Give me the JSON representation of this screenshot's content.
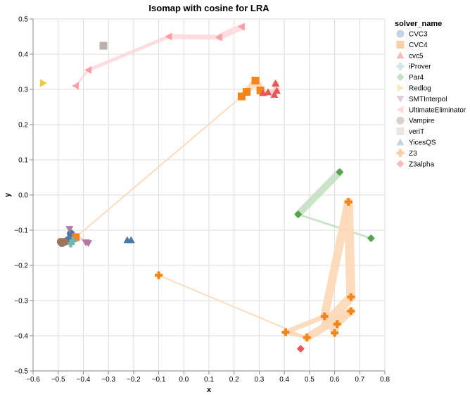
{
  "chart_data": {
    "type": "scatter",
    "title": "Isomap with cosine for LRA",
    "xlabel": "x",
    "ylabel": "y",
    "xlim": [
      -0.6,
      0.8
    ],
    "ylim": [
      -0.5,
      0.5
    ],
    "xticks": [
      "−0.6",
      "−0.5",
      "−0.4",
      "−0.3",
      "−0.2",
      "−0.1",
      "0.0",
      "0.1",
      "0.2",
      "0.3",
      "0.4",
      "0.5",
      "0.6",
      "0.7",
      "0.8"
    ],
    "xtick_values": [
      -0.6,
      -0.5,
      -0.4,
      -0.3,
      -0.2,
      -0.1,
      0.0,
      0.1,
      0.2,
      0.3,
      0.4,
      0.5,
      0.6,
      0.7,
      0.8
    ],
    "yticks": [
      "0.5",
      "0.4",
      "0.3",
      "0.2",
      "0.1",
      "0.0",
      "−0.1",
      "−0.2",
      "−0.3",
      "−0.4",
      "−0.5"
    ],
    "ytick_values": [
      0.5,
      0.4,
      0.3,
      0.2,
      0.1,
      0.0,
      -0.1,
      -0.2,
      -0.3,
      -0.4,
      -0.5
    ],
    "grid": true,
    "legend": {
      "title": "solver_name",
      "position": "right"
    },
    "series": [
      {
        "name": "CVC3",
        "shape": "circle",
        "color": "#4c78a8",
        "legend_color": "#c5d3e3",
        "points": [
          [
            -0.45,
            -0.11
          ],
          [
            -0.46,
            -0.128
          ]
        ]
      },
      {
        "name": "CVC4",
        "shape": "square",
        "color": "#f58518",
        "legend_color": "#fbcfa3",
        "points": [
          [
            0.23,
            0.28
          ],
          [
            0.25,
            0.293
          ],
          [
            0.285,
            0.325
          ],
          [
            0.305,
            0.297
          ],
          [
            -0.43,
            -0.12
          ]
        ]
      },
      {
        "name": "cvc5",
        "shape": "triangle-up",
        "color": "#e45756",
        "legend_color": "#f4bcbb",
        "points": [
          [
            0.315,
            0.29
          ],
          [
            0.335,
            0.292
          ],
          [
            0.36,
            0.285
          ],
          [
            0.365,
            0.317
          ],
          [
            0.37,
            0.296
          ]
        ]
      },
      {
        "name": "iProver",
        "shape": "cross",
        "color": "#72b7b2",
        "legend_color": "#cfe7e5",
        "points": [
          [
            -0.45,
            -0.138
          ],
          [
            -0.44,
            -0.13
          ]
        ]
      },
      {
        "name": "Par4",
        "shape": "diamond",
        "color": "#54a24b",
        "legend_color": "#c6e0c3",
        "points": [
          [
            0.62,
            0.065
          ],
          [
            0.455,
            -0.055
          ],
          [
            0.745,
            -0.123
          ]
        ]
      },
      {
        "name": "Redlog",
        "shape": "triangle-right",
        "color": "#eeca3b",
        "legend_color": "#f9eabb",
        "points": [
          [
            -0.56,
            0.318
          ]
        ]
      },
      {
        "name": "SMTInterpol",
        "shape": "triangle-down",
        "color": "#b279a2",
        "legend_color": "#e2cddc",
        "points": [
          [
            -0.455,
            -0.097
          ],
          [
            -0.39,
            -0.135
          ],
          [
            -0.38,
            -0.137
          ]
        ]
      },
      {
        "name": "UltimateEliminator",
        "shape": "triangle-left",
        "color": "#ff9da6",
        "legend_color": "#ffd9dd",
        "points": [
          [
            -0.43,
            0.31
          ],
          [
            -0.38,
            0.355
          ],
          [
            -0.06,
            0.45
          ],
          [
            0.14,
            0.448
          ],
          [
            0.23,
            0.478
          ]
        ]
      },
      {
        "name": "Vampire",
        "shape": "circle",
        "color": "#9d755d",
        "legend_color": "#ddd0c8",
        "points": [
          [
            -0.49,
            -0.133
          ],
          [
            -0.475,
            -0.133
          ],
          [
            -0.485,
            -0.137
          ]
        ]
      },
      {
        "name": "veriT",
        "shape": "square",
        "color": "#bab0ac",
        "legend_color": "#e9e6e4",
        "points": [
          [
            -0.32,
            0.424
          ]
        ]
      },
      {
        "name": "YicesQS",
        "shape": "triangle-up",
        "color": "#4c78a8",
        "legend_color": "#c5d3e3",
        "points": [
          [
            -0.225,
            -0.128
          ],
          [
            -0.21,
            -0.128
          ]
        ]
      },
      {
        "name": "Z3",
        "shape": "cross",
        "color": "#f58518",
        "legend_color": "#fbcfa3",
        "points": [
          [
            -0.1,
            -0.228
          ],
          [
            0.405,
            -0.39
          ],
          [
            0.49,
            -0.405
          ],
          [
            0.56,
            -0.345
          ],
          [
            0.6,
            -0.392
          ],
          [
            0.61,
            -0.367
          ],
          [
            0.665,
            -0.33
          ],
          [
            0.665,
            -0.29
          ],
          [
            0.655,
            -0.02
          ]
        ]
      },
      {
        "name": "Z3alpha",
        "shape": "diamond",
        "color": "#e45756",
        "legend_color": "#f4bcbb",
        "points": [
          [
            0.465,
            -0.437
          ]
        ]
      }
    ],
    "trails": [
      {
        "name": "UltimateEliminator",
        "color": "#ffd9dd",
        "segments": [
          {
            "from": [
              -0.43,
              0.31
            ],
            "to": [
              -0.38,
              0.355
            ],
            "width": 3
          },
          {
            "from": [
              -0.38,
              0.355
            ],
            "to": [
              -0.06,
              0.45
            ],
            "width": 5
          },
          {
            "from": [
              -0.06,
              0.45
            ],
            "to": [
              0.14,
              0.448
            ],
            "width": 7
          },
          {
            "from": [
              0.14,
              0.448
            ],
            "to": [
              0.23,
              0.478
            ],
            "width": 9
          }
        ]
      },
      {
        "name": "CVC4",
        "color": "#fdd9b8",
        "segments": [
          {
            "from": [
              -0.43,
              -0.12
            ],
            "to": [
              0.23,
              0.28
            ],
            "width": 2
          },
          {
            "from": [
              0.23,
              0.28
            ],
            "to": [
              0.25,
              0.293
            ],
            "width": 7
          },
          {
            "from": [
              0.25,
              0.293
            ],
            "to": [
              0.285,
              0.325
            ],
            "width": 9
          },
          {
            "from": [
              0.285,
              0.325
            ],
            "to": [
              0.305,
              0.297
            ],
            "width": 11
          }
        ]
      },
      {
        "name": "cvc5",
        "color": "#f8cdcc",
        "segments": [
          {
            "from": [
              0.315,
              0.29
            ],
            "to": [
              0.335,
              0.292
            ],
            "width": 4
          },
          {
            "from": [
              0.335,
              0.292
            ],
            "to": [
              0.37,
              0.296
            ],
            "width": 7
          },
          {
            "from": [
              0.37,
              0.296
            ],
            "to": [
              0.365,
              0.317
            ],
            "width": 9
          }
        ]
      },
      {
        "name": "Par4",
        "color": "#c6e0c3",
        "segments": [
          {
            "from": [
              0.745,
              -0.123
            ],
            "to": [
              0.455,
              -0.055
            ],
            "width": 3
          },
          {
            "from": [
              0.455,
              -0.055
            ],
            "to": [
              0.62,
              0.065
            ],
            "width": 10
          }
        ]
      },
      {
        "name": "Z3",
        "color": "#fdd9b8",
        "segments": [
          {
            "from": [
              -0.1,
              -0.228
            ],
            "to": [
              0.49,
              -0.405
            ],
            "width": 2
          },
          {
            "from": [
              0.49,
              -0.405
            ],
            "to": [
              0.405,
              -0.39
            ],
            "width": 5
          },
          {
            "from": [
              0.405,
              -0.39
            ],
            "to": [
              0.56,
              -0.345
            ],
            "width": 7
          },
          {
            "from": [
              0.56,
              -0.345
            ],
            "to": [
              0.6,
              -0.392
            ],
            "width": 8
          },
          {
            "from": [
              0.6,
              -0.392
            ],
            "to": [
              0.61,
              -0.367
            ],
            "width": 9
          },
          {
            "from": [
              0.61,
              -0.367
            ],
            "to": [
              0.665,
              -0.33
            ],
            "width": 10
          },
          {
            "from": [
              0.665,
              -0.33
            ],
            "to": [
              0.49,
              -0.405
            ],
            "width": 11
          },
          {
            "from": [
              0.56,
              -0.345
            ],
            "to": [
              0.655,
              -0.02
            ],
            "width": 12
          },
          {
            "from": [
              0.655,
              -0.02
            ],
            "to": [
              0.665,
              -0.29
            ],
            "width": 13
          },
          {
            "from": [
              0.665,
              -0.29
            ],
            "to": [
              0.565,
              -0.365
            ],
            "width": 13
          }
        ]
      },
      {
        "name": "SMTInterpol",
        "color": "#eadbe5",
        "segments": [
          {
            "from": [
              -0.455,
              -0.097
            ],
            "to": [
              -0.39,
              -0.135
            ],
            "width": 4
          }
        ]
      }
    ]
  }
}
